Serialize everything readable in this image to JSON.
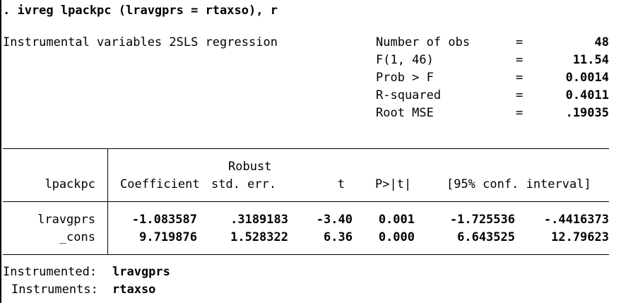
{
  "command": ". ivreg lpackpc (lravgprs = rtaxso), r",
  "header": {
    "title": "Instrumental variables 2SLS regression",
    "stats": [
      {
        "label": "Number of obs",
        "eq": "=",
        "value": "48"
      },
      {
        "label": "F(1, 46)",
        "eq": "=",
        "value": "11.54"
      },
      {
        "label": "Prob > F",
        "eq": "=",
        "value": "0.0014"
      },
      {
        "label": "R-squared",
        "eq": "=",
        "value": "0.4011"
      },
      {
        "label": "Root MSE",
        "eq": "=",
        "value": ".19035"
      }
    ]
  },
  "table": {
    "robust_label": "Robust",
    "columns": [
      "lpackpc",
      "Coefficient",
      "std. err.",
      "t",
      "P>|t|",
      "[95% conf. interval]"
    ],
    "rows": [
      {
        "var": "lravgprs",
        "coef": "-1.083587",
        "se": ".3189183",
        "t": "-3.40",
        "p": "0.001",
        "lo": "-1.725536",
        "hi": "-.4416373"
      },
      {
        "var": "_cons",
        "coef": "9.719876",
        "se": "1.528322",
        "t": "6.36",
        "p": "0.000",
        "lo": "6.643525",
        "hi": "12.79623"
      }
    ]
  },
  "footer": {
    "instrumented_label": "Instrumented:",
    "instrumented_value": "lravgprs",
    "instruments_label": "Instruments:",
    "instruments_value": "rtaxso"
  }
}
